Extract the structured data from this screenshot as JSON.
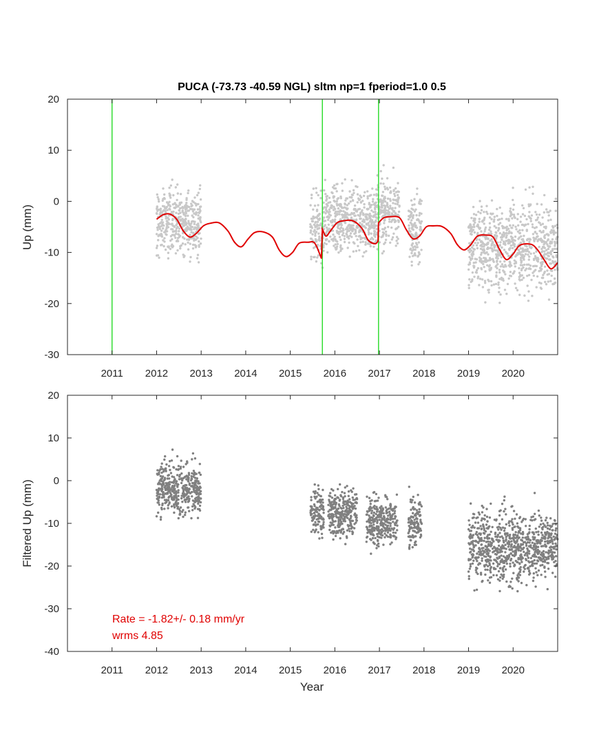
{
  "chart_data": [
    {
      "type": "scatter",
      "title": "PUCA (-73.73 -40.59 NGL) sltm np=1 fperiod=1.0 0.5",
      "xlabel": "",
      "ylabel": "Up (mm)",
      "xlim": [
        2010.0,
        2021.0
      ],
      "ylim": [
        -30,
        20
      ],
      "xticks": [
        2011,
        2012,
        2013,
        2014,
        2015,
        2016,
        2017,
        2018,
        2019,
        2020
      ],
      "yticks": [
        20,
        10,
        0,
        -10,
        -20,
        -30
      ],
      "grid": false,
      "colors": {
        "points": "#c8c8c8",
        "model": "#e00000",
        "events": "#33dd33"
      },
      "vertical_lines": [
        2011.0,
        2015.72,
        2016.98
      ],
      "segments": [
        {
          "start": 2012.0,
          "end": 2013.0,
          "mean": -4.0,
          "spread": 4.5
        },
        {
          "start": 2015.45,
          "end": 2015.75,
          "mean": -6.0,
          "spread": 5.0
        },
        {
          "start": 2015.75,
          "end": 2016.95,
          "mean": -3.5,
          "spread": 4.5
        },
        {
          "start": 2016.95,
          "end": 2017.45,
          "mean": -2.0,
          "spread": 4.5
        },
        {
          "start": 2017.65,
          "end": 2017.95,
          "mean": -5.0,
          "spread": 4.5
        },
        {
          "start": 2019.0,
          "end": 2021.0,
          "mean": -9.0,
          "spread": 6.0
        }
      ],
      "model_line": {
        "x": [
          2012.0,
          2012.15,
          2012.3,
          2012.45,
          2012.6,
          2012.75,
          2012.9,
          2013.05,
          2013.2,
          2013.4,
          2013.6,
          2013.75,
          2013.9,
          2014.05,
          2014.2,
          2014.4,
          2014.6,
          2014.75,
          2014.9,
          2015.05,
          2015.2,
          2015.4,
          2015.55,
          2015.7,
          2015.72,
          2015.8,
          2015.9,
          2016.05,
          2016.2,
          2016.4,
          2016.6,
          2016.75,
          2016.9,
          2016.97,
          2016.98,
          2017.1,
          2017.25,
          2017.45,
          2017.6,
          2017.75,
          2017.9,
          2018.05,
          2018.2,
          2018.4,
          2018.6,
          2018.75,
          2018.9,
          2019.05,
          2019.2,
          2019.4,
          2019.55,
          2019.7,
          2019.85,
          2020.0,
          2020.15,
          2020.4,
          2020.55,
          2020.7,
          2020.85,
          2021.0
        ],
        "y": [
          -3.5,
          -2.6,
          -2.5,
          -3.5,
          -5.8,
          -7.0,
          -6.2,
          -4.8,
          -4.3,
          -4.2,
          -5.8,
          -8.0,
          -8.9,
          -7.4,
          -6.1,
          -6.0,
          -7.0,
          -9.5,
          -10.8,
          -10.0,
          -8.2,
          -8.0,
          -8.2,
          -11.2,
          -5.4,
          -6.8,
          -5.8,
          -4.2,
          -3.8,
          -3.8,
          -5.2,
          -7.6,
          -8.3,
          -7.8,
          -4.2,
          -3.2,
          -3.0,
          -3.2,
          -5.5,
          -7.3,
          -6.8,
          -5.0,
          -4.8,
          -4.9,
          -6.3,
          -8.5,
          -9.5,
          -8.5,
          -6.8,
          -6.6,
          -7.0,
          -9.5,
          -11.4,
          -10.3,
          -8.6,
          -8.4,
          -9.5,
          -11.5,
          -13.2,
          -12.0
        ]
      }
    },
    {
      "type": "scatter",
      "title": "",
      "xlabel": "Year",
      "ylabel": "Filtered Up (mm)",
      "xlim": [
        2010.0,
        2021.0
      ],
      "ylim": [
        -40,
        20
      ],
      "xticks": [
        2011,
        2012,
        2013,
        2014,
        2015,
        2016,
        2017,
        2018,
        2019,
        2020
      ],
      "yticks": [
        20,
        10,
        0,
        -10,
        -20,
        -30,
        -40
      ],
      "grid": false,
      "colors": {
        "points": "#808080"
      },
      "segments": [
        {
          "start": 2012.0,
          "end": 2013.0,
          "mean": -2.0,
          "spread": 4.5
        },
        {
          "start": 2015.45,
          "end": 2015.75,
          "mean": -7.0,
          "spread": 4.0
        },
        {
          "start": 2015.85,
          "end": 2016.5,
          "mean": -7.5,
          "spread": 4.0
        },
        {
          "start": 2016.7,
          "end": 2017.4,
          "mean": -9.5,
          "spread": 4.0
        },
        {
          "start": 2017.65,
          "end": 2017.95,
          "mean": -9.5,
          "spread": 4.0
        },
        {
          "start": 2019.0,
          "end": 2021.0,
          "mean": -15.5,
          "spread": 6.0
        }
      ],
      "annotation": {
        "rate": "Rate = -1.82+/- 0.18 mm/yr",
        "wrms": "wrms 4.85",
        "color": "#e00000"
      }
    }
  ]
}
